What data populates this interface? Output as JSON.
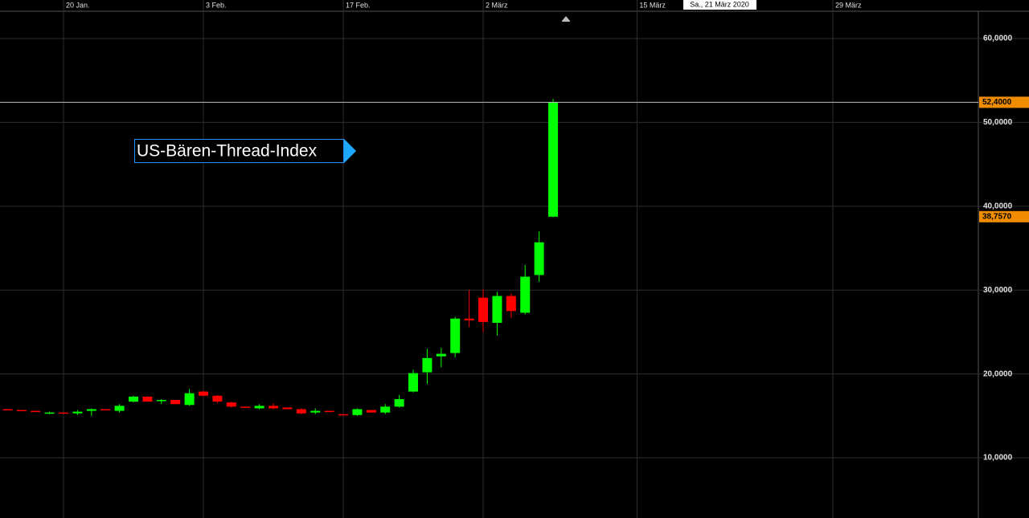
{
  "chart_data": {
    "type": "candlestick",
    "title": "US-Bären-Thread-Index",
    "x": [
      -4,
      -3,
      -2,
      -1,
      0,
      1,
      2,
      3,
      4,
      5,
      6,
      7,
      8,
      9,
      10,
      11,
      12,
      13,
      14,
      15,
      16,
      17,
      18,
      19,
      20,
      21,
      22,
      23,
      24,
      25,
      26,
      27,
      28,
      29,
      30,
      31,
      32,
      33,
      34,
      35
    ],
    "open": [
      15.8,
      15.7,
      15.6,
      15.3,
      15.4,
      15.3,
      15.6,
      15.8,
      15.6,
      16.7,
      17.3,
      16.8,
      16.9,
      16.3,
      17.9,
      17.4,
      16.6,
      16.1,
      15.9,
      16.2,
      16.0,
      15.8,
      15.4,
      15.6,
      15.2,
      15.1,
      15.7,
      15.4,
      16.1,
      17.9,
      20.2,
      22.1,
      22.5,
      26.6,
      29.1,
      26.1,
      29.3,
      27.3,
      31.8,
      38.757
    ],
    "high": [
      15.8,
      15.7,
      15.6,
      15.5,
      15.4,
      15.7,
      15.9,
      15.8,
      16.4,
      17.4,
      17.3,
      17.0,
      16.9,
      18.2,
      18.0,
      17.5,
      16.7,
      16.1,
      16.4,
      16.5,
      16.0,
      15.9,
      15.9,
      15.6,
      15.2,
      15.9,
      15.7,
      16.4,
      17.5,
      20.5,
      23.0,
      23.1,
      26.8,
      30.0,
      30.1,
      29.8,
      29.6,
      33.0,
      37.0,
      52.8
    ],
    "low": [
      15.7,
      15.6,
      15.5,
      15.2,
      15.3,
      15.1,
      15.0,
      15.7,
      15.4,
      16.6,
      16.7,
      16.4,
      16.4,
      16.2,
      17.3,
      16.5,
      16.0,
      16.0,
      15.8,
      15.8,
      15.8,
      15.2,
      15.2,
      15.5,
      15.1,
      15.0,
      15.4,
      15.2,
      16.0,
      17.8,
      18.8,
      20.8,
      22.0,
      25.6,
      25.0,
      24.6,
      26.7,
      27.1,
      31.0,
      38.7
    ],
    "close": [
      15.7,
      15.6,
      15.5,
      15.4,
      15.3,
      15.5,
      15.8,
      15.7,
      16.2,
      17.3,
      16.7,
      16.9,
      16.4,
      17.7,
      17.4,
      16.7,
      16.1,
      16.0,
      16.2,
      15.9,
      15.8,
      15.3,
      15.6,
      15.5,
      15.1,
      15.8,
      15.4,
      16.1,
      17.0,
      20.1,
      21.9,
      22.4,
      26.6,
      26.4,
      26.2,
      29.3,
      27.5,
      31.6,
      35.7,
      52.4
    ],
    "up_color": "#00ff00",
    "down_color": "#ff0000",
    "xlim": [
      -4.54,
      65.4
    ],
    "xticks": [
      {
        "value": 0,
        "label": "20 Jan."
      },
      {
        "value": 10,
        "label": "3 Feb."
      },
      {
        "value": 20,
        "label": "17 Feb."
      },
      {
        "value": 30,
        "label": "2 März"
      },
      {
        "value": 41,
        "label": "15 März"
      },
      {
        "value": 55,
        "label": "29 März"
      }
    ],
    "ylim": [
      2.82,
      63.26
    ],
    "yticks": [
      {
        "value": 10,
        "label": "10,0000"
      },
      {
        "value": 20,
        "label": "20,0000"
      },
      {
        "value": 30,
        "label": "30,0000"
      },
      {
        "value": 40,
        "label": "40,0000"
      },
      {
        "value": 50,
        "label": "50,0000"
      },
      {
        "value": 60,
        "label": "60,0000"
      }
    ],
    "price_labels": [
      {
        "value": 52.4,
        "label": "52,4000"
      },
      {
        "value": 38.757,
        "label": "38,7570"
      }
    ],
    "cursor_label": "Sa., 21 März 2020",
    "grid": true
  }
}
